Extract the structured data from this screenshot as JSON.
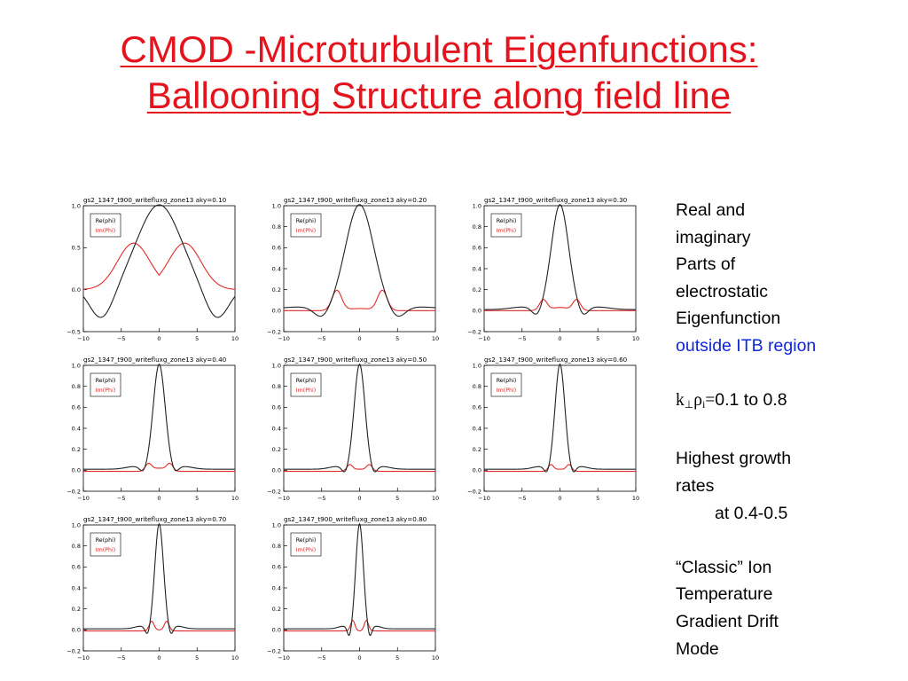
{
  "slide": {
    "title_line1": "CMOD -Microturbulent Eigenfunctions:",
    "title_line2": "Ballooning Structure along field line",
    "title_color": "#e4141e"
  },
  "side": {
    "line1": "Real and",
    "line2": "imaginary",
    "line3": "Parts of",
    "line4": "electrostatic",
    "line5": "Eigenfunction",
    "line6": "outside ITB region",
    "k_symbol": "k",
    "perp_symbol": "⊥",
    "rho_symbol": "ρ",
    "sub_i": "i",
    "eq_sign": "=",
    "k_range": "0.1 to 0.8",
    "growth1": "Highest growth",
    "growth2": "rates",
    "growth3": "at 0.4-0.5",
    "classic1": "“Classic” Ion",
    "classic2": "Temperature",
    "classic3": "Gradient Drift",
    "classic4": "Mode",
    "blue_color": "#0f27d6"
  },
  "chart_data": [
    {
      "type": "line",
      "title": "gs2_1347_t900_writefluxg_zone13  aky=0.10",
      "x_ticks": [
        -10,
        -5,
        0,
        5,
        10
      ],
      "y_ticks": [
        "1.0",
        "0.5",
        "0.0",
        "-0.5"
      ],
      "xlim": [
        -10,
        10
      ],
      "ylim": [
        -0.5,
        1.0
      ],
      "legend": [
        "Re(phi)",
        "Im(Phi)"
      ],
      "legend_position": "top-left",
      "width": 4.0,
      "im_peak": 0.55,
      "im_pos": 3.4,
      "im_base": 0.0,
      "im_width": 3.0,
      "im_center": 0.02,
      "dip": -0.38
    },
    {
      "type": "line",
      "title": "gs2_1347_t900_writefluxg_zone13  aky=0.20",
      "x_ticks": [
        -10,
        -5,
        0,
        5,
        10
      ],
      "y_ticks": [
        "1.0",
        "0.8",
        "0.6",
        "0.4",
        "0.2",
        "0.0",
        "-0.2"
      ],
      "xlim": [
        -10,
        10
      ],
      "ylim": [
        -0.2,
        1.0
      ],
      "legend": [
        "Re(phi)",
        "Im(Phi)"
      ],
      "legend_position": "top-left",
      "width": 2.6,
      "im_peak": 0.19,
      "im_pos": 3.0,
      "im_base": 0.0,
      "im_width": 0.9,
      "im_center": 0.02,
      "dip": -0.1
    },
    {
      "type": "line",
      "title": "gs2_1347_t900_writefluxg_zone13  aky=0.30",
      "x_ticks": [
        -10,
        -5,
        0,
        5,
        10
      ],
      "y_ticks": [
        "1.0",
        "0.8",
        "0.6",
        "0.4",
        "0.2",
        "0.0",
        "-0.2"
      ],
      "xlim": [
        -10,
        10
      ],
      "ylim": [
        -0.2,
        1.0
      ],
      "legend": [
        "Re(phi)",
        "Im(Phi)"
      ],
      "legend_position": "top-left",
      "width": 1.6,
      "im_peak": 0.1,
      "im_pos": 2.2,
      "im_base": 0.0,
      "im_width": 0.7,
      "im_center": 0.03,
      "dip": -0.08
    },
    {
      "type": "line",
      "title": "gs2_1347_t900_writefluxg_zone13  aky=0.40",
      "x_ticks": [
        -10,
        -5,
        0,
        5,
        10
      ],
      "y_ticks": [
        "1.0",
        "0.8",
        "0.6",
        "0.4",
        "0.2",
        "0.0",
        "-0.2"
      ],
      "xlim": [
        -10,
        10
      ],
      "ylim": [
        -0.2,
        1.0
      ],
      "legend": [
        "Re(phi)",
        "Im(Phi)"
      ],
      "legend_position": "top-left",
      "width": 1.1,
      "im_peak": 0.07,
      "im_pos": 1.4,
      "im_base": -0.01,
      "im_width": 0.6,
      "im_center": 0.03,
      "dip": -0.05
    },
    {
      "type": "line",
      "title": "gs2_1347_t900_writefluxg_zone13  aky=0.50",
      "x_ticks": [
        -10,
        -5,
        0,
        5,
        10
      ],
      "y_ticks": [
        "1.0",
        "0.8",
        "0.6",
        "0.4",
        "0.2",
        "0.0",
        "-0.2"
      ],
      "xlim": [
        -10,
        10
      ],
      "ylim": [
        -0.2,
        1.0
      ],
      "legend": [
        "Re(phi)",
        "Im(Phi)"
      ],
      "legend_position": "top-left",
      "width": 1.0,
      "im_peak": 0.06,
      "im_pos": 1.3,
      "im_base": -0.01,
      "im_width": 0.55,
      "im_center": 0.02,
      "dip": -0.06
    },
    {
      "type": "line",
      "title": "gs2_1347_t900_writefluxg_zone13  aky=0.60",
      "x_ticks": [
        -10,
        -5,
        0,
        5,
        10
      ],
      "y_ticks": [
        "1.0",
        "0.8",
        "0.6",
        "0.4",
        "0.2",
        "0.0",
        "-0.2"
      ],
      "xlim": [
        -10,
        10
      ],
      "ylim": [
        -0.2,
        1.0
      ],
      "legend": [
        "Re(phi)",
        "Im(Phi)"
      ],
      "legend_position": "top-left",
      "width": 0.9,
      "im_peak": 0.06,
      "im_pos": 1.2,
      "im_base": -0.01,
      "im_width": 0.5,
      "im_center": 0.02,
      "dip": -0.06
    },
    {
      "type": "line",
      "title": "gs2_1347_t900_writefluxg_zone13  aky=0.70",
      "x_ticks": [
        -10,
        -5,
        0,
        5,
        10
      ],
      "y_ticks": [
        "1.0",
        "0.8",
        "0.6",
        "0.4",
        "0.2",
        "0.0",
        "-0.2"
      ],
      "xlim": [
        -10,
        10
      ],
      "ylim": [
        -0.2,
        1.0
      ],
      "legend": [
        "Re(phi)",
        "Im(Phi)"
      ],
      "legend_position": "top-left",
      "width": 0.8,
      "im_peak": 0.09,
      "im_pos": 1.0,
      "im_base": -0.01,
      "im_width": 0.45,
      "im_center": 0.01,
      "dip": -0.08
    },
    {
      "type": "line",
      "title": "gs2_1347_t900_writefluxg_zone13  aky=0.80",
      "x_ticks": [
        -10,
        -5,
        0,
        5,
        10
      ],
      "y_ticks": [
        "1.0",
        "0.8",
        "0.6",
        "0.4",
        "0.2",
        "0.0",
        "-0.2"
      ],
      "xlim": [
        -10,
        10
      ],
      "ylim": [
        -0.2,
        1.0
      ],
      "legend": [
        "Re(phi)",
        "Im(Phi)"
      ],
      "legend_position": "top-left",
      "width": 0.7,
      "im_peak": 0.1,
      "im_pos": 0.9,
      "im_base": -0.01,
      "im_width": 0.4,
      "im_center": 0.0,
      "dip": -0.1
    }
  ]
}
